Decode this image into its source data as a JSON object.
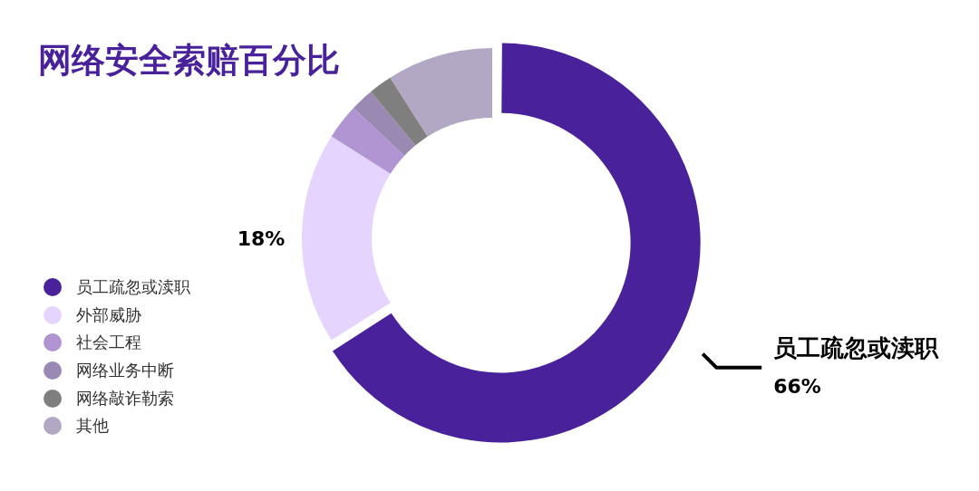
{
  "chart_data": {
    "type": "donut",
    "title": "网络安全索赔百分比",
    "categories": [
      "员工疏忽或渎职",
      "外部威胁",
      "社会工程",
      "网络业务中断",
      "网络敲诈勒索",
      "其他"
    ],
    "values": [
      66,
      18,
      3,
      2,
      2,
      9
    ],
    "colors": [
      "#48219b",
      "#e5d4fe",
      "#b095d2",
      "#9a8ab3",
      "#7f7f7f",
      "#b3a8c3"
    ],
    "value_labels": [
      "66%",
      "18%",
      null,
      null,
      null,
      null
    ],
    "annotations": [
      "员工疏忽或渎职"
    ],
    "legend": "left"
  }
}
